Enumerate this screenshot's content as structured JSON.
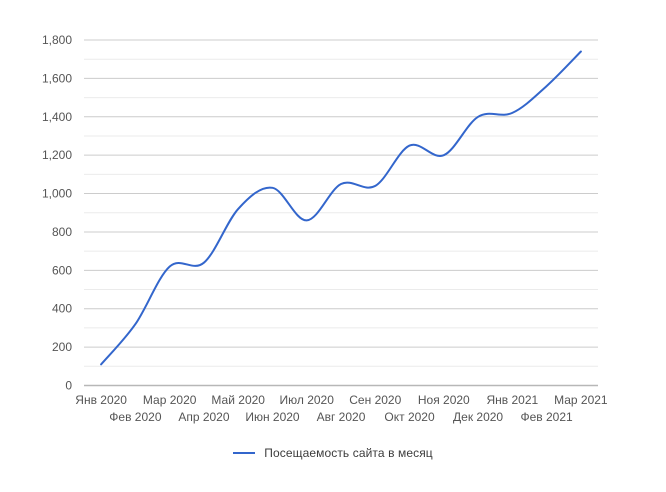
{
  "chart_data": {
    "type": "line",
    "title": "",
    "categories": [
      "Янв 2020",
      "Фев 2020",
      "Мар 2020",
      "Апр 2020",
      "Май 2020",
      "Июн 2020",
      "Июл 2020",
      "Авг 2020",
      "Сен 2020",
      "Окт 2020",
      "Ноя 2020",
      "Дек 2020",
      "Янв 2021",
      "Фев 2021",
      "Мар 2021"
    ],
    "series": [
      {
        "name": "Посещаемость сайта в месяц",
        "color": "#3366cc",
        "values": [
          110,
          320,
          620,
          640,
          920,
          1030,
          860,
          1050,
          1040,
          1250,
          1200,
          1400,
          1420,
          1560,
          1740
        ]
      }
    ],
    "xlabel": "",
    "ylabel": "",
    "ylim": [
      0,
      1800
    ],
    "y_major_step": 200,
    "y_minor_step": 100,
    "y_tick_labels": [
      "0",
      "200",
      "400",
      "600",
      "800",
      "1,000",
      "1,200",
      "1,400",
      "1,600",
      "1,800"
    ],
    "grid": "horizontal, major and minor",
    "line_style": "smooth-spline",
    "x_label_layout": "staggered-two-rows",
    "legend_position": "bottom-center"
  },
  "legend": {
    "label": "Посещаемость сайта в месяц"
  },
  "colors": {
    "series_line": "#3366cc",
    "grid_major": "#cccccc",
    "grid_minor": "#ebebeb",
    "baseline": "#b7b7b7",
    "axis_text": "#555555",
    "legend_text": "#3c3c3c",
    "background": "#ffffff"
  }
}
